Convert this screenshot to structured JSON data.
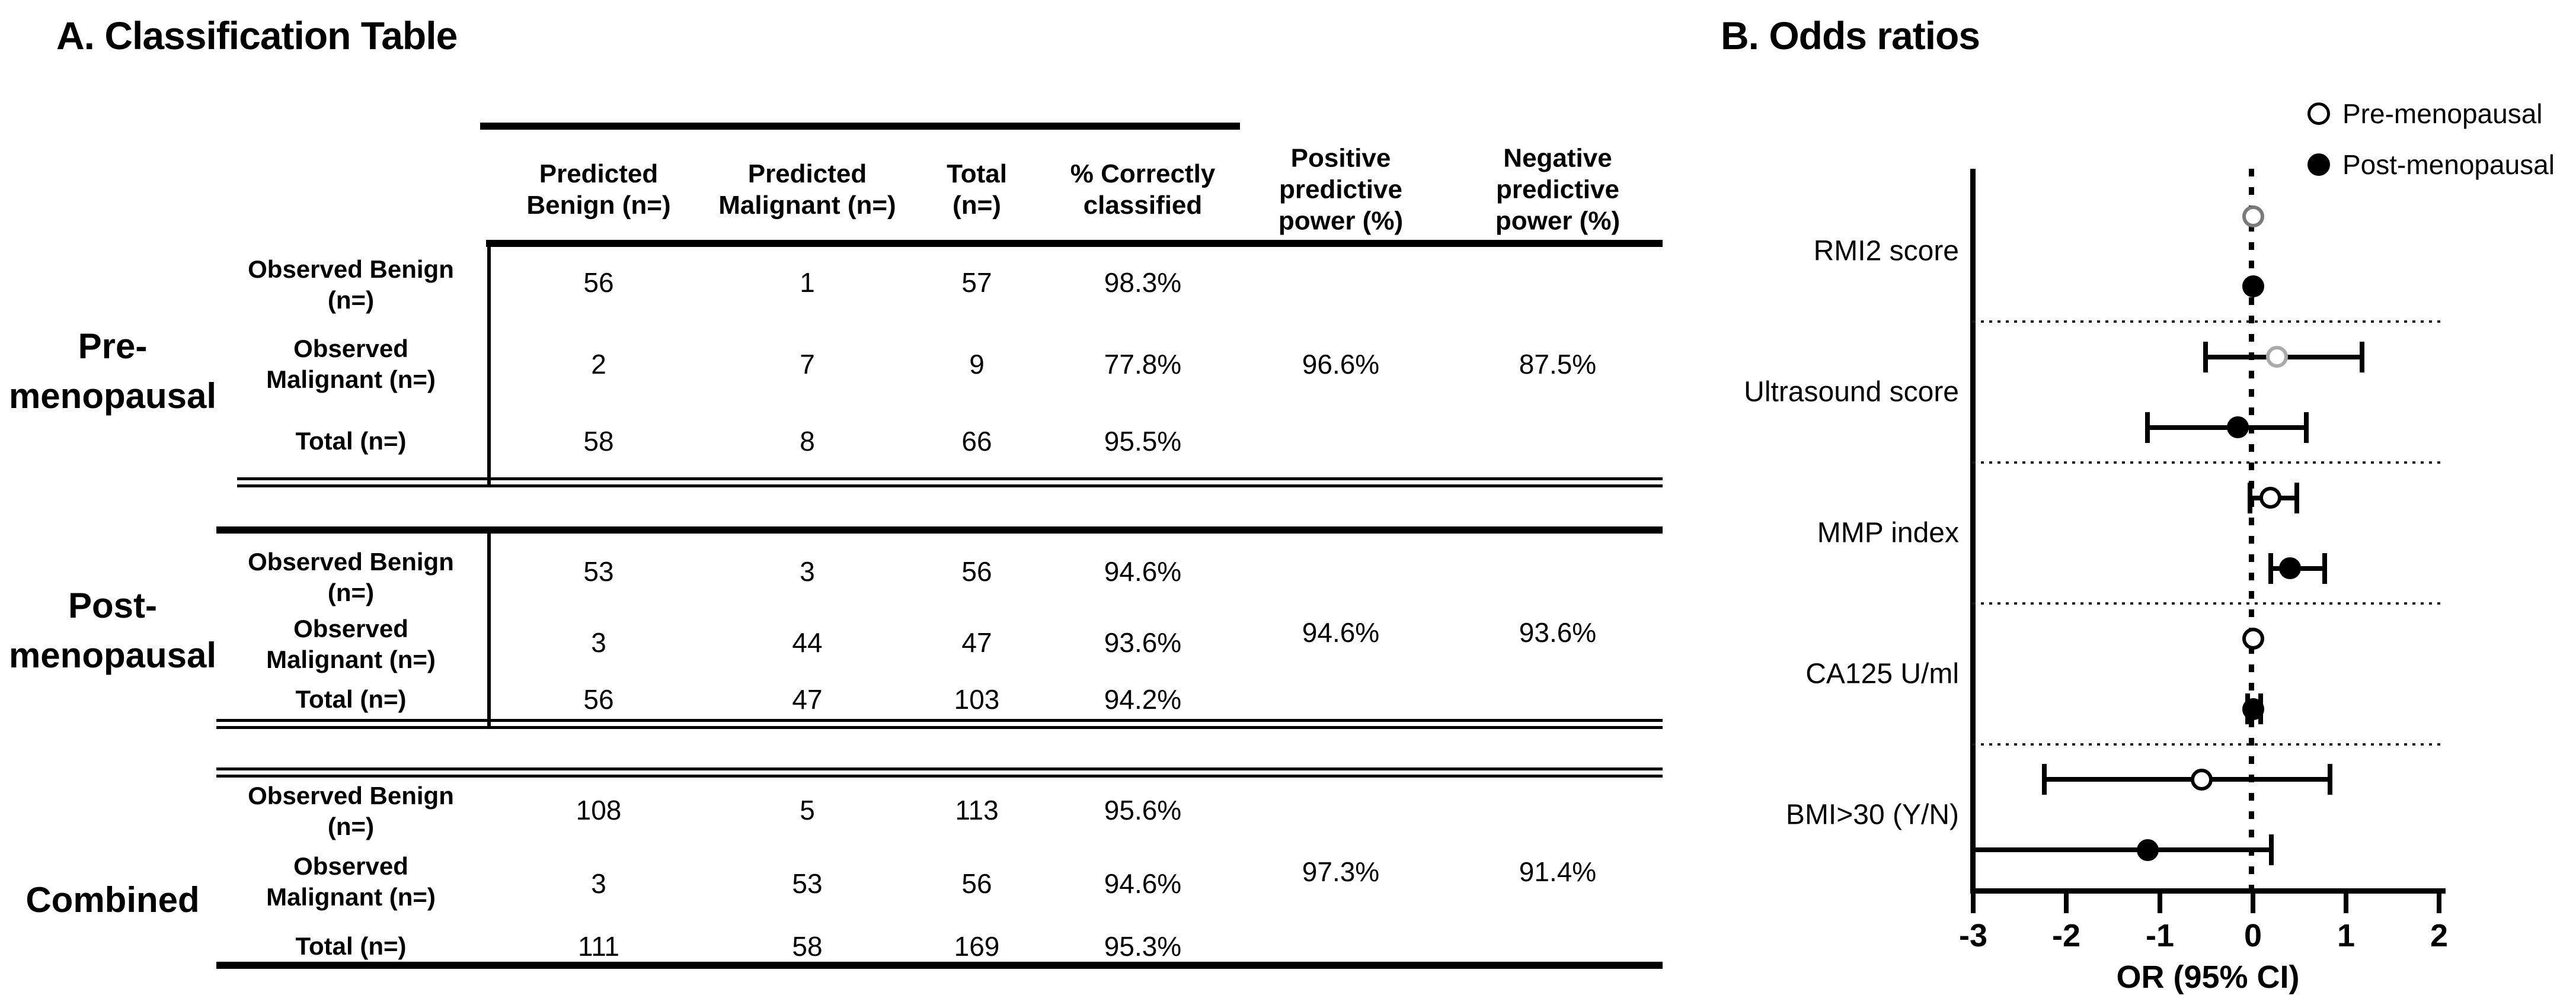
{
  "figure": {
    "background": "#ffffff",
    "text_color": "#000000"
  },
  "chart_data": [
    {
      "type": "table",
      "title": "A. Classification Table",
      "columns": [
        [
          "Predicted",
          "Benign (n=)"
        ],
        [
          "Predicted",
          "Malignant (n=)"
        ],
        [
          "Total",
          "(n=)"
        ],
        [
          "% Correctly",
          "classified"
        ],
        [
          "Positive",
          "predictive",
          "power (%)"
        ],
        [
          "Negative",
          "predictive",
          "power (%)"
        ]
      ],
      "sections": [
        {
          "label_lines": [
            "Pre-",
            "menopausal"
          ],
          "rows": [
            {
              "label_lines": [
                "Observed Benign",
                "(n=)"
              ],
              "values": [
                "56",
                "1",
                "57",
                "98.3%"
              ]
            },
            {
              "label_lines": [
                "Observed",
                "Malignant (n=)"
              ],
              "values": [
                "2",
                "7",
                "9",
                "77.8%"
              ]
            },
            {
              "label_lines": [
                "Total (n=)"
              ],
              "values": [
                "58",
                "8",
                "66",
                "95.5%"
              ]
            }
          ],
          "positive_predictive_power": "96.6%",
          "negative_predictive_power": "87.5%"
        },
        {
          "label_lines": [
            "Post-",
            "menopausal"
          ],
          "rows": [
            {
              "label_lines": [
                "Observed Benign",
                "(n=)"
              ],
              "values": [
                "53",
                "3",
                "56",
                "94.6%"
              ]
            },
            {
              "label_lines": [
                "Observed",
                "Malignant (n=)"
              ],
              "values": [
                "3",
                "44",
                "47",
                "93.6%"
              ]
            },
            {
              "label_lines": [
                "Total (n=)"
              ],
              "values": [
                "56",
                "47",
                "103",
                "94.2%"
              ]
            }
          ],
          "positive_predictive_power": "94.6%",
          "negative_predictive_power": "93.6%"
        },
        {
          "label_lines": [
            "Combined"
          ],
          "rows": [
            {
              "label_lines": [
                "Observed Benign",
                "(n=)"
              ],
              "values": [
                "108",
                "5",
                "113",
                "95.6%"
              ]
            },
            {
              "label_lines": [
                "Observed",
                "Malignant (n=)"
              ],
              "values": [
                "3",
                "53",
                "56",
                "94.6%"
              ]
            },
            {
              "label_lines": [
                "Total (n=)"
              ],
              "values": [
                "111",
                "58",
                "169",
                "95.3%"
              ]
            }
          ],
          "positive_predictive_power": "97.3%",
          "negative_predictive_power": "91.4%"
        }
      ]
    },
    {
      "type": "forest",
      "title": "B. Odds ratios",
      "xlabel": "OR (95% CI)",
      "xlim": [
        -3,
        2
      ],
      "xticks": [
        "-3",
        "-2",
        "-1",
        "0",
        "1",
        "2"
      ],
      "xtick_values": [
        -3,
        -2,
        -1,
        0,
        1,
        2
      ],
      "zero_reference_line": 0,
      "grid": "dotted group separators",
      "legend_position": "top-right",
      "legend": [
        {
          "label": "Pre-menopausal",
          "marker": "open"
        },
        {
          "label": "Post-menopausal",
          "marker": "filled"
        }
      ],
      "rows": [
        {
          "variable": "RMI2 score",
          "points": [
            {
              "series": "Pre-menopausal",
              "or": 0.0,
              "ci_low": null,
              "ci_high": null,
              "marker": "open",
              "stroke": "#7a7a7a"
            },
            {
              "series": "Post-menopausal",
              "or": 0.0,
              "ci_low": null,
              "ci_high": null,
              "marker": "filled",
              "stroke": "#000000"
            }
          ]
        },
        {
          "variable": "Ultrasound score",
          "points": [
            {
              "series": "Pre-menopausal",
              "or": 0.26,
              "ci_low": -0.51,
              "ci_high": 1.17,
              "marker": "open",
              "stroke": "#aaaaaa"
            },
            {
              "series": "Post-menopausal",
              "or": -0.16,
              "ci_low": -1.13,
              "ci_high": 0.57,
              "marker": "filled",
              "stroke": "#000000"
            }
          ]
        },
        {
          "variable": "MMP index",
          "points": [
            {
              "series": "Pre-menopausal",
              "or": 0.19,
              "ci_low": -0.03,
              "ci_high": 0.47,
              "marker": "open",
              "stroke": "#000000"
            },
            {
              "series": "Post-menopausal",
              "or": 0.4,
              "ci_low": 0.19,
              "ci_high": 0.77,
              "marker": "filled",
              "stroke": "#000000"
            }
          ]
        },
        {
          "variable": "CA125 U/ml",
          "points": [
            {
              "series": "Pre-menopausal",
              "or": 0.0,
              "ci_low": null,
              "ci_high": null,
              "marker": "open",
              "stroke": "#000000"
            },
            {
              "series": "Post-menopausal",
              "or": 0.0,
              "ci_low": -0.06,
              "ci_high": 0.08,
              "marker": "filled",
              "stroke": "#000000"
            }
          ]
        },
        {
          "variable": "BMI>30 (Y/N)",
          "points": [
            {
              "series": "Pre-menopausal",
              "or": -0.55,
              "ci_low": -2.24,
              "ci_high": 0.83,
              "marker": "open",
              "stroke": "#000000"
            },
            {
              "series": "Post-menopausal",
              "or": -1.13,
              "ci_low": -3.02,
              "ci_high": 0.2,
              "cap_low": false,
              "marker": "filled",
              "stroke": "#000000"
            }
          ]
        }
      ]
    }
  ]
}
